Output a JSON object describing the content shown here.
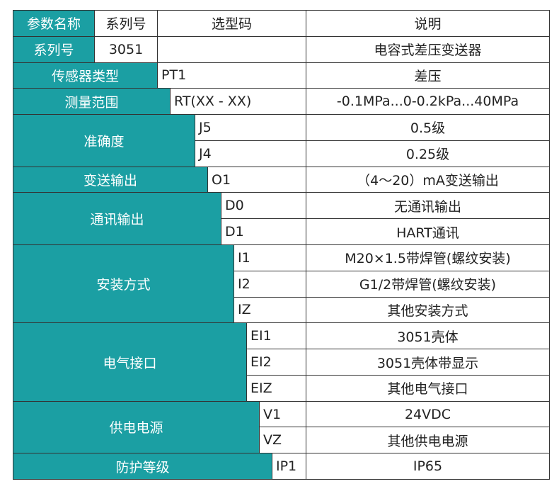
{
  "header": [
    "参数名称",
    "系列号",
    "选型码",
    "说明"
  ],
  "series_row": {
    "label": "系列号",
    "code": "3051",
    "desc": "电容式差压变送器"
  },
  "groups": [
    {
      "name": "传感器类型",
      "options": [
        {
          "code": "PT1",
          "desc": "差压"
        }
      ]
    },
    {
      "name": "测量范围",
      "options": [
        {
          "code": "RT(XX - XX)",
          "desc": "-0.1MPa...0-0.2kPa...40MPa"
        }
      ]
    },
    {
      "name": "准确度",
      "options": [
        {
          "code": "J5",
          "desc": "0.5级"
        },
        {
          "code": "J4",
          "desc": "0.25级"
        }
      ]
    },
    {
      "name": "变送输出",
      "options": [
        {
          "code": "O1",
          "desc": "（4～20）mA变送输出"
        }
      ]
    },
    {
      "name": "通讯输出",
      "options": [
        {
          "code": "D0",
          "desc": "无通讯输出"
        },
        {
          "code": "D1",
          "desc": "HART通讯"
        }
      ]
    },
    {
      "name": "安装方式",
      "options": [
        {
          "code": "I1",
          "desc": "M20×1.5带焊管(螺纹安装)"
        },
        {
          "code": "I2",
          "desc": "G1/2带焊管(螺纹安装)"
        },
        {
          "code": "IZ",
          "desc": "其他安装方式"
        }
      ]
    },
    {
      "name": "电气接口",
      "options": [
        {
          "code": "EI1",
          "desc": "3051壳体"
        },
        {
          "code": "EI2",
          "desc": "3051壳体带显示"
        },
        {
          "code": "EIZ",
          "desc": "其他电气接口"
        }
      ]
    },
    {
      "name": "供电电源",
      "options": [
        {
          "code": "V1",
          "desc": "24VDC"
        },
        {
          "code": "VZ",
          "desc": "其他供电电源"
        }
      ]
    },
    {
      "name": "防护等级",
      "options": [
        {
          "code": "IP1",
          "desc": "IP65"
        }
      ]
    }
  ]
}
